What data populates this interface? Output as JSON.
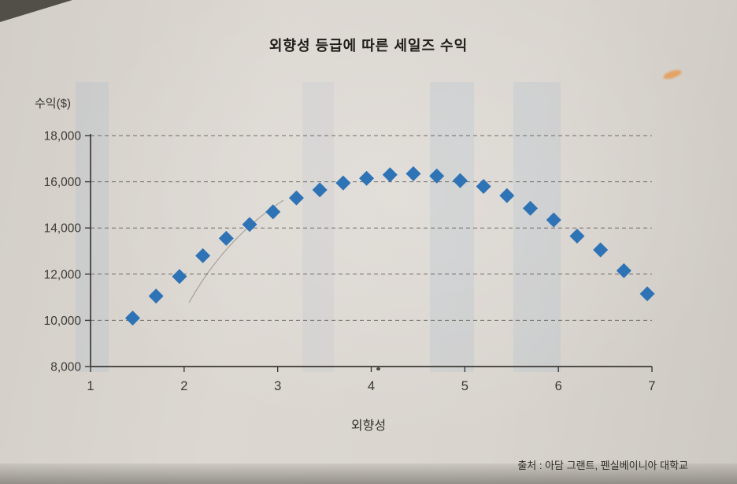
{
  "chart_data": {
    "type": "scatter",
    "title": "외향성 등급에 따른 세일즈 수익",
    "xlabel": "외향성",
    "ylabel": "수익($)",
    "source": "출처 : 아담 그랜트, 펜실베이니아 대학교",
    "xlim": [
      1,
      7
    ],
    "ylim": [
      8000,
      18000
    ],
    "grid": "horizontal-dashed",
    "legend": "none",
    "marker": "diamond",
    "marker_color": "#2e73b5",
    "marker_size": 9.5,
    "x_ticks": [
      {
        "value": 1,
        "label": "1"
      },
      {
        "value": 2,
        "label": "2"
      },
      {
        "value": 3,
        "label": "3"
      },
      {
        "value": 4,
        "label": "4"
      },
      {
        "value": 5,
        "label": "5"
      },
      {
        "value": 6,
        "label": "6"
      },
      {
        "value": 7,
        "label": "7"
      }
    ],
    "y_ticks": [
      {
        "value": 8000,
        "label": "8,000"
      },
      {
        "value": 10000,
        "label": "10,000"
      },
      {
        "value": 12000,
        "label": "12,000"
      },
      {
        "value": 14000,
        "label": "14,000"
      },
      {
        "value": 16000,
        "label": "16,000"
      },
      {
        "value": 18000,
        "label": "18,000"
      }
    ],
    "points": [
      [
        1.45,
        10100
      ],
      [
        1.7,
        11050
      ],
      [
        1.95,
        11900
      ],
      [
        2.2,
        12800
      ],
      [
        2.45,
        13550
      ],
      [
        2.7,
        14150
      ],
      [
        2.95,
        14700
      ],
      [
        3.2,
        15300
      ],
      [
        3.45,
        15650
      ],
      [
        3.7,
        15950
      ],
      [
        3.95,
        16150
      ],
      [
        4.2,
        16300
      ],
      [
        4.45,
        16350
      ],
      [
        4.7,
        16250
      ],
      [
        4.95,
        16050
      ],
      [
        5.2,
        15800
      ],
      [
        5.45,
        15400
      ],
      [
        5.7,
        14850
      ],
      [
        5.95,
        14350
      ],
      [
        6.2,
        13650
      ],
      [
        6.45,
        13050
      ],
      [
        6.7,
        12150
      ],
      [
        6.95,
        11150
      ]
    ]
  }
}
